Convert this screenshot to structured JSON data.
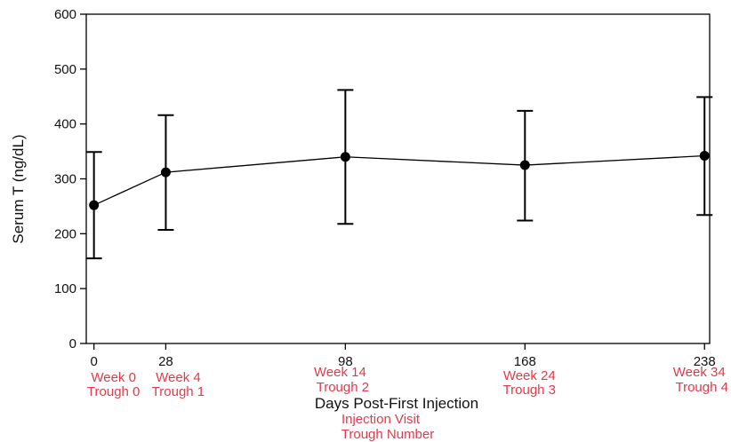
{
  "colors": {
    "annotation": "#e23a4a",
    "axis": "#000000",
    "series": "#000000"
  },
  "chart_data": {
    "type": "line",
    "xlabel": "Days Post-First Injection",
    "ylabel": "Serum T (ng/dL)",
    "ylim": [
      0,
      600
    ],
    "yticks": [
      0,
      100,
      200,
      300,
      400,
      500,
      600
    ],
    "xlim": [
      -3,
      240
    ],
    "xticks": [
      0,
      28,
      98,
      168,
      238
    ],
    "grid": false,
    "series": [
      {
        "x": [
          0,
          28,
          98,
          168,
          238
        ],
        "y": [
          252,
          312,
          340,
          325,
          342
        ],
        "err_low": [
          155,
          207,
          218,
          224,
          234
        ],
        "err_high": [
          349,
          416,
          462,
          424,
          449
        ]
      }
    ],
    "x_annotations": [
      {
        "x": 0,
        "visit": "Week 0",
        "trough": "Trough 0"
      },
      {
        "x": 28,
        "visit": "Week 4",
        "trough": "Trough 1"
      },
      {
        "x": 98,
        "visit": "Week 14",
        "trough": "Trough 2"
      },
      {
        "x": 168,
        "visit": "Week 24",
        "trough": "Trough 3"
      },
      {
        "x": 238,
        "visit": "Week 34",
        "trough": "Trough 4"
      }
    ],
    "annotation_legend": [
      "Injection Visit",
      "Trough Number"
    ]
  }
}
